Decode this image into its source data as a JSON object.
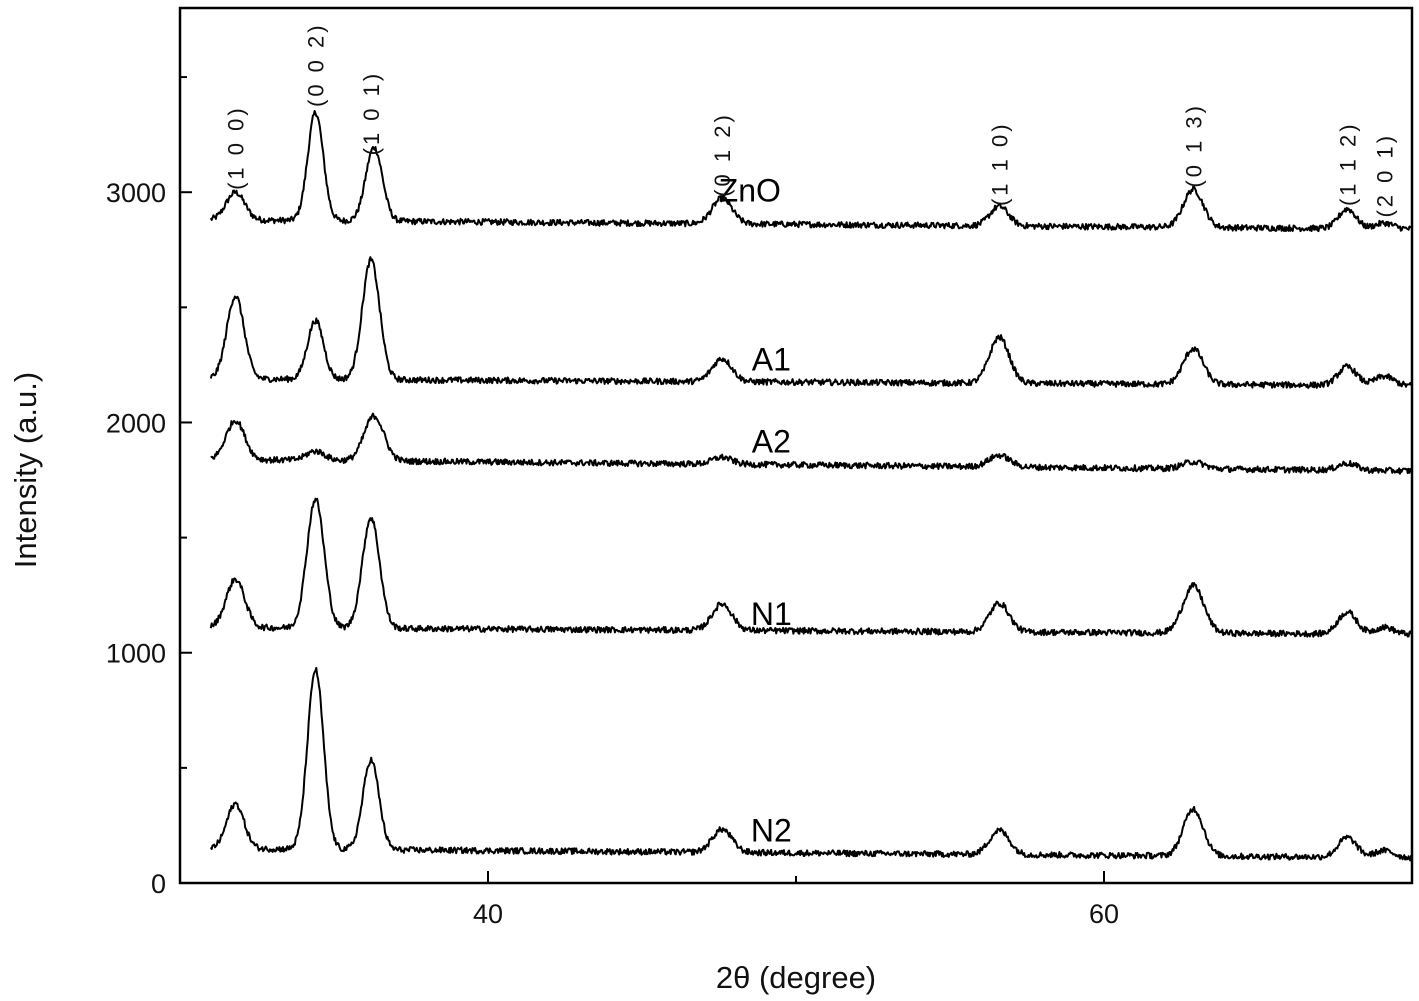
{
  "chart_data": {
    "type": "line",
    "xlabel": "2θ (degree)",
    "ylabel": "Intensity (a.u.)",
    "xlim": [
      30,
      70
    ],
    "ylim": [
      0,
      3800
    ],
    "xticks_major": [
      40,
      60
    ],
    "xticks_minor": [
      50
    ],
    "yticks_major": [
      0,
      1000,
      2000,
      3000
    ],
    "yticks_minor": [
      500,
      1500,
      2500,
      3500
    ],
    "grid": false,
    "series": [
      {
        "name": "ZnO",
        "baseline": 2880,
        "end_baseline": 2840,
        "peaks": [
          {
            "x": 31.8,
            "height": 120,
            "width": 0.3
          },
          {
            "x": 34.4,
            "height": 470,
            "width": 0.25
          },
          {
            "x": 36.3,
            "height": 320,
            "width": 0.27
          },
          {
            "x": 47.6,
            "height": 110,
            "width": 0.32
          },
          {
            "x": 56.6,
            "height": 85,
            "width": 0.3
          },
          {
            "x": 62.9,
            "height": 165,
            "width": 0.32
          },
          {
            "x": 67.9,
            "height": 85,
            "width": 0.28
          },
          {
            "x": 69.1,
            "height": 25,
            "width": 0.3
          }
        ]
      },
      {
        "name": "A1",
        "baseline": 2190,
        "end_baseline": 2160,
        "peaks": [
          {
            "x": 31.8,
            "height": 360,
            "width": 0.28
          },
          {
            "x": 34.4,
            "height": 255,
            "width": 0.26
          },
          {
            "x": 36.2,
            "height": 520,
            "width": 0.28
          },
          {
            "x": 47.6,
            "height": 100,
            "width": 0.32
          },
          {
            "x": 56.6,
            "height": 200,
            "width": 0.32
          },
          {
            "x": 62.9,
            "height": 155,
            "width": 0.32
          },
          {
            "x": 67.9,
            "height": 80,
            "width": 0.3
          },
          {
            "x": 69.1,
            "height": 40,
            "width": 0.3
          }
        ]
      },
      {
        "name": "A2",
        "baseline": 1840,
        "end_baseline": 1790,
        "peaks": [
          {
            "x": 31.8,
            "height": 170,
            "width": 0.3
          },
          {
            "x": 34.4,
            "height": 40,
            "width": 0.3
          },
          {
            "x": 36.3,
            "height": 195,
            "width": 0.32
          },
          {
            "x": 47.6,
            "height": 30,
            "width": 0.32
          },
          {
            "x": 56.6,
            "height": 50,
            "width": 0.34
          },
          {
            "x": 62.9,
            "height": 30,
            "width": 0.34
          },
          {
            "x": 67.9,
            "height": 30,
            "width": 0.3
          }
        ]
      },
      {
        "name": "N1",
        "baseline": 1110,
        "end_baseline": 1080,
        "peaks": [
          {
            "x": 31.8,
            "height": 210,
            "width": 0.3
          },
          {
            "x": 34.4,
            "height": 560,
            "width": 0.28
          },
          {
            "x": 36.2,
            "height": 480,
            "width": 0.28
          },
          {
            "x": 47.6,
            "height": 115,
            "width": 0.32
          },
          {
            "x": 56.6,
            "height": 125,
            "width": 0.32
          },
          {
            "x": 62.9,
            "height": 205,
            "width": 0.34
          },
          {
            "x": 67.9,
            "height": 95,
            "width": 0.3
          },
          {
            "x": 69.1,
            "height": 30,
            "width": 0.3
          }
        ]
      },
      {
        "name": "N2",
        "baseline": 150,
        "end_baseline": 110,
        "peaks": [
          {
            "x": 31.8,
            "height": 195,
            "width": 0.28
          },
          {
            "x": 34.4,
            "height": 780,
            "width": 0.26
          },
          {
            "x": 36.2,
            "height": 390,
            "width": 0.26
          },
          {
            "x": 47.6,
            "height": 100,
            "width": 0.32
          },
          {
            "x": 56.6,
            "height": 105,
            "width": 0.32
          },
          {
            "x": 62.9,
            "height": 205,
            "width": 0.32
          },
          {
            "x": 67.9,
            "height": 85,
            "width": 0.3
          },
          {
            "x": 69.1,
            "height": 30,
            "width": 0.3
          }
        ]
      }
    ],
    "series_labels": [
      {
        "series": "ZnO",
        "x": 48.5,
        "y": 2960
      },
      {
        "series": "A1",
        "x": 49.2,
        "y": 2225
      },
      {
        "series": "A2",
        "x": 49.2,
        "y": 1870
      },
      {
        "series": "N1",
        "x": 49.2,
        "y": 1120
      },
      {
        "series": "N2",
        "x": 49.2,
        "y": 180
      }
    ],
    "peak_annotations": [
      {
        "label": "(1 0 0)",
        "x": 31.8,
        "y": 3010
      },
      {
        "label": "(0 0 2)",
        "x": 34.4,
        "y": 3370
      },
      {
        "label": "(1 0 1)",
        "x": 36.2,
        "y": 3160
      },
      {
        "label": "(0 1 2)",
        "x": 47.6,
        "y": 2980
      },
      {
        "label": "(1 1 0)",
        "x": 56.6,
        "y": 2940
      },
      {
        "label": "(0 1 3)",
        "x": 62.9,
        "y": 3020
      },
      {
        "label": "(1 1 2)",
        "x": 67.9,
        "y": 2940
      },
      {
        "label": "(2 0 1)",
        "x": 69.1,
        "y": 2890
      }
    ]
  }
}
